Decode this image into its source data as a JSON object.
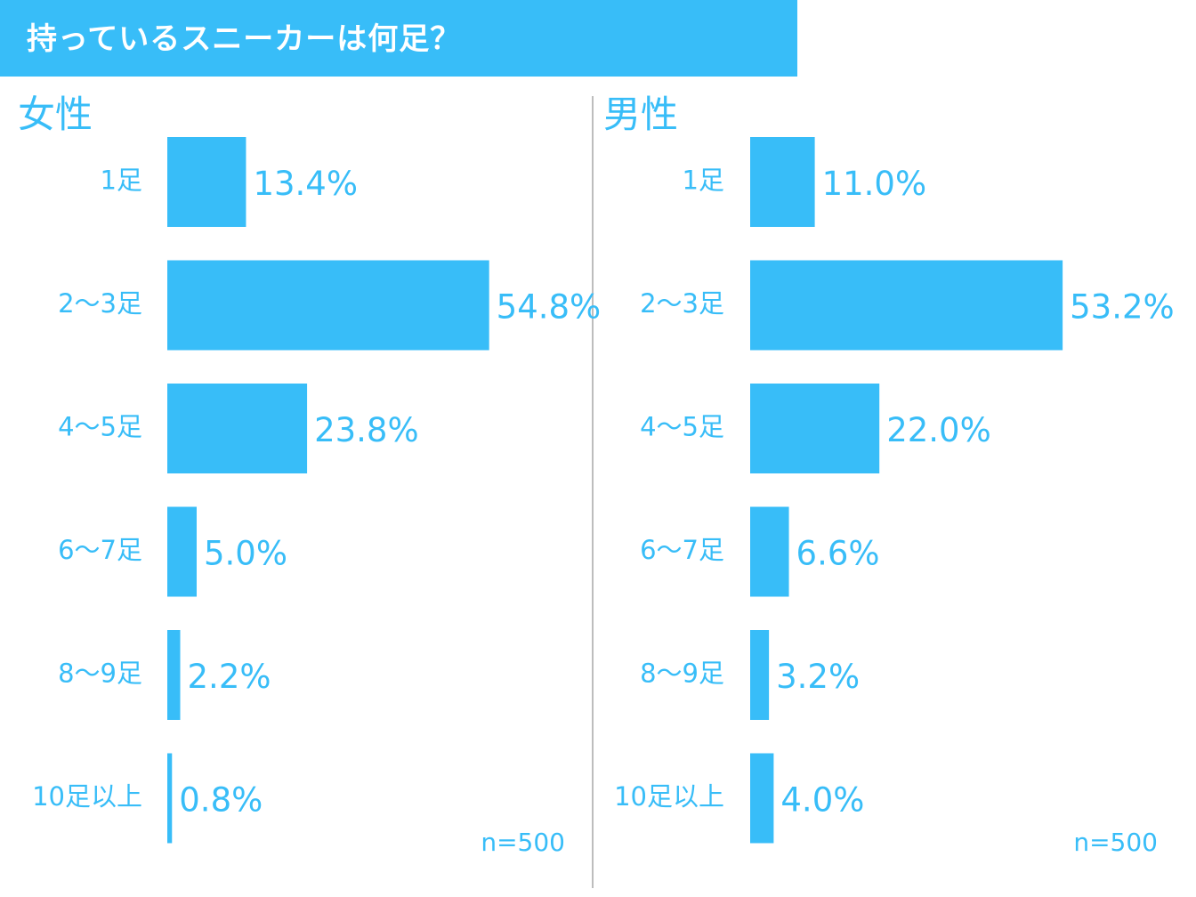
{
  "header": {
    "title": "持っているスニーカーは何足？"
  },
  "colors": {
    "accent": "#38bdf8"
  },
  "chart_data": [
    {
      "type": "bar",
      "orientation": "horizontal",
      "title": "女性",
      "categories": [
        "1足",
        "2〜3足",
        "4〜5足",
        "6〜7足",
        "8〜9足",
        "10足以上"
      ],
      "values": [
        13.4,
        54.8,
        23.8,
        5.0,
        2.2,
        0.8
      ],
      "value_labels": [
        "13.4%",
        "54.8%",
        "23.8%",
        "5.0%",
        "2.2%",
        "0.8%"
      ],
      "unit": "%",
      "note": "n=500",
      "grid": false
    },
    {
      "type": "bar",
      "orientation": "horizontal",
      "title": "男性",
      "categories": [
        "1足",
        "2〜3足",
        "4〜5足",
        "6〜7足",
        "8〜9足",
        "10足以上"
      ],
      "values": [
        11.0,
        53.2,
        22.0,
        6.6,
        3.2,
        4.0
      ],
      "value_labels": [
        "11.0%",
        "53.2%",
        "22.0%",
        "6.6%",
        "3.2%",
        "4.0%"
      ],
      "unit": "%",
      "note": "n=500",
      "grid": false
    }
  ]
}
